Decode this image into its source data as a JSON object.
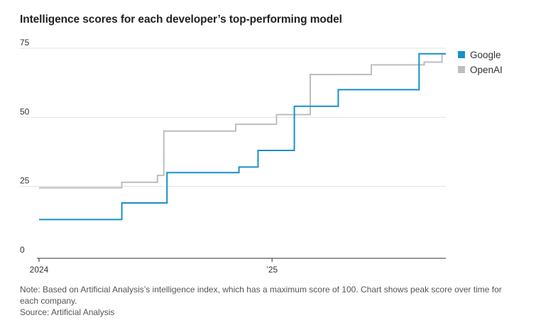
{
  "header": {
    "title": "Intelligence scores for each developer’s top-performing model"
  },
  "footer": {
    "note": "Note: Based on Artificial Analysis’s intelligence index, which has a maximum score of 100. Chart shows peak score over time for each company.",
    "source": "Source: Artificial Analysis"
  },
  "chart_data": {
    "type": "line",
    "step": true,
    "title": "Intelligence scores for each developer’s top-performing model",
    "xlabel": "",
    "ylabel": "",
    "xlim": [
      "2024-01-01",
      "2025-10-01"
    ],
    "ylim": [
      0,
      75
    ],
    "yticks": [
      0,
      25,
      50,
      75
    ],
    "xticks": [
      {
        "value": "2024-01-01",
        "label": "2024"
      },
      {
        "value": "2025-01-01",
        "label": "’25"
      }
    ],
    "grid": "horizontal",
    "legend": "top-right",
    "series": [
      {
        "name": "OpenAI",
        "color": "#bdbdbd",
        "points": [
          {
            "x": "2024-01-01",
            "y": 24.5
          },
          {
            "x": "2024-05-10",
            "y": 26.5
          },
          {
            "x": "2024-07-05",
            "y": 29
          },
          {
            "x": "2024-07-15",
            "y": 45
          },
          {
            "x": "2024-11-05",
            "y": 47.5
          },
          {
            "x": "2025-01-08",
            "y": 51
          },
          {
            "x": "2025-03-02",
            "y": 65.5
          },
          {
            "x": "2025-06-06",
            "y": 69
          },
          {
            "x": "2025-08-28",
            "y": 70
          },
          {
            "x": "2025-09-25",
            "y": 73
          }
        ]
      },
      {
        "name": "Google",
        "color": "#1a8fc9",
        "points": [
          {
            "x": "2024-01-01",
            "y": 13
          },
          {
            "x": "2024-05-10",
            "y": 19
          },
          {
            "x": "2024-07-20",
            "y": 30
          },
          {
            "x": "2024-11-10",
            "y": 32
          },
          {
            "x": "2024-12-10",
            "y": 38
          },
          {
            "x": "2025-02-05",
            "y": 54
          },
          {
            "x": "2025-04-15",
            "y": 60
          },
          {
            "x": "2025-08-20",
            "y": 73
          }
        ]
      }
    ]
  }
}
